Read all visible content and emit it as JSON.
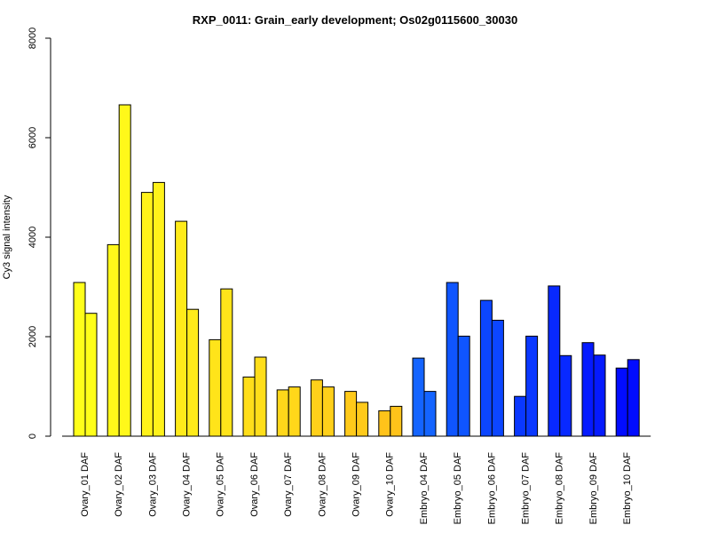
{
  "chart_data": {
    "type": "bar",
    "title": "RXP_0011: Grain_early development; Os02g0115600_30030",
    "xlabel": "",
    "ylabel": "Cy3 signal intensity",
    "ylim": [
      0,
      8000
    ],
    "yticks": [
      0,
      2000,
      4000,
      6000,
      8000
    ],
    "grid": false,
    "legend": "none",
    "categories": [
      "Ovary_01 DAF",
      "Ovary_02 DAF",
      "Ovary_03 DAF",
      "Ovary_04 DAF",
      "Ovary_05 DAF",
      "Ovary_06 DAF",
      "Ovary_07 DAF",
      "Ovary_08 DAF",
      "Ovary_09 DAF",
      "Ovary_10 DAF",
      "Embryo_04 DAF",
      "Embryo_05 DAF",
      "Embryo_06 DAF",
      "Embryo_07 DAF",
      "Embryo_08 DAF",
      "Embryo_09 DAF",
      "Embryo_10 DAF"
    ],
    "series": [
      {
        "values": [
          3090,
          3850,
          4900,
          4320,
          1940,
          1190,
          930,
          1130,
          900,
          510,
          1570,
          3090,
          2730,
          800,
          3020,
          1880,
          1370
        ]
      },
      {
        "values": [
          2470,
          6660,
          5100,
          2550,
          2960,
          1590,
          990,
          990,
          680,
          600,
          900,
          2010,
          2330,
          2010,
          1620,
          1630,
          1540
        ]
      }
    ],
    "colors": [
      "#FFFF1A",
      "#FFF81A",
      "#FFF21A",
      "#FFEB1A",
      "#FFE41A",
      "#FFDE1A",
      "#FFD71A",
      "#FFD01A",
      "#FFCA1A",
      "#FFC31A",
      "#1464FF",
      "#0F55FF",
      "#0C46FF",
      "#0A38FF",
      "#0829FF",
      "#051AFF",
      "#020CFF"
    ]
  }
}
